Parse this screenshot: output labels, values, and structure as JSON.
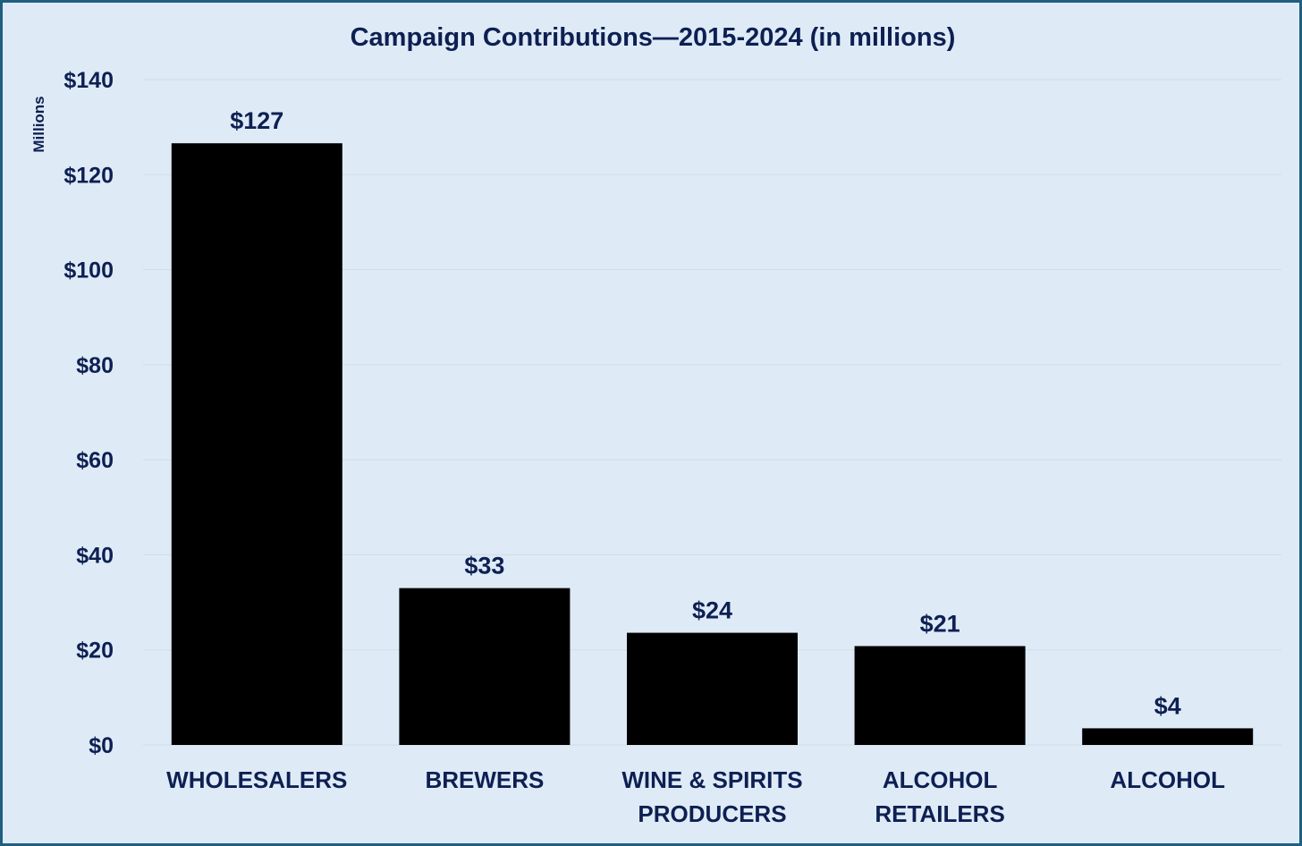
{
  "chart_data": {
    "type": "bar",
    "title": "Campaign Contributions—2015-2024 (in millions)",
    "ylabel": "Millions",
    "xlabel": "",
    "categories": [
      [
        "WHOLESALERS"
      ],
      [
        "BREWERS"
      ],
      [
        "WINE & SPIRITS",
        "PRODUCERS"
      ],
      [
        "ALCOHOL",
        "RETAILERS"
      ],
      [
        "ALCOHOL"
      ]
    ],
    "values": [
      126.6,
      33.0,
      23.6,
      20.8,
      3.5
    ],
    "data_labels": [
      "$127",
      "$33",
      "$24",
      "$21",
      "$4"
    ],
    "ylim": [
      0,
      140
    ],
    "yticks": [
      0,
      20,
      40,
      60,
      80,
      100,
      120,
      140
    ],
    "ytick_labels": [
      "$0",
      "$20",
      "$40",
      "$60",
      "$80",
      "$100",
      "$120",
      "$140"
    ],
    "grid": true,
    "bar_color": "#000000",
    "text_color": "#0e1f52",
    "background_color": "#deebf7",
    "border_color": "#1f5f7f"
  }
}
